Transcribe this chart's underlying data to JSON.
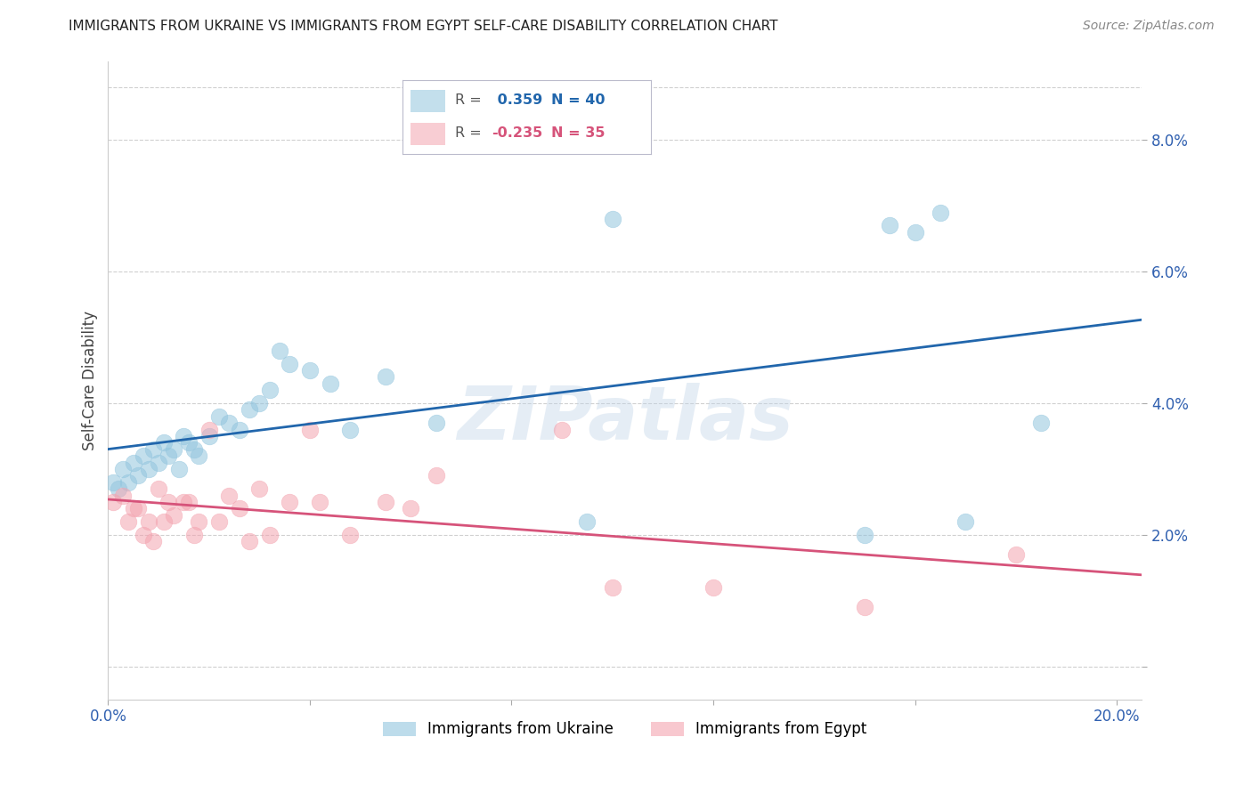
{
  "title": "IMMIGRANTS FROM UKRAINE VS IMMIGRANTS FROM EGYPT SELF-CARE DISABILITY CORRELATION CHART",
  "source": "Source: ZipAtlas.com",
  "ylabel": "Self-Care Disability",
  "watermark": "ZIPatlas",
  "xlim": [
    0.0,
    0.205
  ],
  "ylim": [
    -0.005,
    0.092
  ],
  "plot_ylim": [
    -0.005,
    0.092
  ],
  "yticks": [
    0.0,
    0.02,
    0.04,
    0.06,
    0.08
  ],
  "ukraine_color": "#92c5de",
  "egypt_color": "#f4a4b0",
  "ukraine_line_color": "#2166ac",
  "egypt_line_color": "#d6537a",
  "ukraine_R": 0.359,
  "ukraine_N": 40,
  "egypt_R": -0.235,
  "egypt_N": 35,
  "ukraine_x": [
    0.001,
    0.002,
    0.003,
    0.004,
    0.005,
    0.006,
    0.007,
    0.008,
    0.009,
    0.01,
    0.011,
    0.012,
    0.013,
    0.014,
    0.015,
    0.016,
    0.017,
    0.018,
    0.02,
    0.022,
    0.024,
    0.026,
    0.028,
    0.03,
    0.032,
    0.034,
    0.036,
    0.04,
    0.044,
    0.048,
    0.055,
    0.065,
    0.095,
    0.1,
    0.15,
    0.155,
    0.16,
    0.165,
    0.17,
    0.185
  ],
  "ukraine_y": [
    0.028,
    0.027,
    0.03,
    0.028,
    0.031,
    0.029,
    0.032,
    0.03,
    0.033,
    0.031,
    0.034,
    0.032,
    0.033,
    0.03,
    0.035,
    0.034,
    0.033,
    0.032,
    0.035,
    0.038,
    0.037,
    0.036,
    0.039,
    0.04,
    0.042,
    0.048,
    0.046,
    0.045,
    0.043,
    0.036,
    0.044,
    0.037,
    0.022,
    0.068,
    0.02,
    0.067,
    0.066,
    0.069,
    0.022,
    0.037
  ],
  "egypt_x": [
    0.001,
    0.003,
    0.004,
    0.005,
    0.006,
    0.007,
    0.008,
    0.009,
    0.01,
    0.011,
    0.012,
    0.013,
    0.015,
    0.016,
    0.017,
    0.018,
    0.02,
    0.022,
    0.024,
    0.026,
    0.028,
    0.03,
    0.032,
    0.036,
    0.04,
    0.042,
    0.048,
    0.055,
    0.06,
    0.065,
    0.09,
    0.1,
    0.12,
    0.15,
    0.18
  ],
  "egypt_y": [
    0.025,
    0.026,
    0.022,
    0.024,
    0.024,
    0.02,
    0.022,
    0.019,
    0.027,
    0.022,
    0.025,
    0.023,
    0.025,
    0.025,
    0.02,
    0.022,
    0.036,
    0.022,
    0.026,
    0.024,
    0.019,
    0.027,
    0.02,
    0.025,
    0.036,
    0.025,
    0.02,
    0.025,
    0.024,
    0.029,
    0.036,
    0.012,
    0.012,
    0.009,
    0.017
  ],
  "background": "#ffffff",
  "grid_color": "#d0d0d0",
  "legend_box_color": "#e8eff8"
}
